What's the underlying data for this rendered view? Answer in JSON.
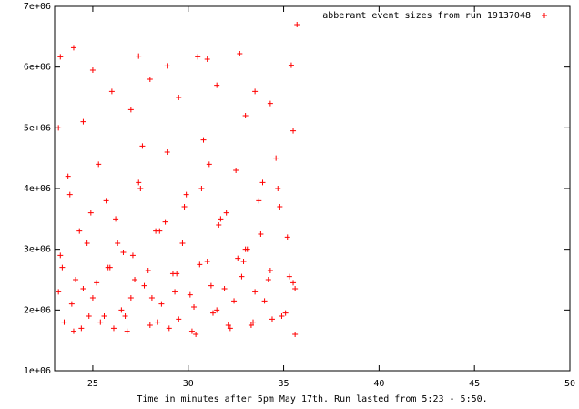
{
  "chart_data": {
    "type": "scatter",
    "xlabel": "Time in minutes after 5pm May 17th.  Run lasted from 5:23 - 5:50.",
    "xlim": [
      23,
      50
    ],
    "xticks": [
      25,
      30,
      35,
      40,
      45,
      50
    ],
    "ylim": [
      1000000,
      7000000
    ],
    "yticks": [
      {
        "value": 1000000,
        "label": "1e+06"
      },
      {
        "value": 2000000,
        "label": "2e+06"
      },
      {
        "value": 3000000,
        "label": "3e+06"
      },
      {
        "value": 4000000,
        "label": "4e+06"
      },
      {
        "value": 5000000,
        "label": "5e+06"
      },
      {
        "value": 6000000,
        "label": "6e+06"
      },
      {
        "value": 7000000,
        "label": "7e+06"
      }
    ],
    "legend_position": "top-right",
    "series": [
      {
        "name": "abberant event sizes from run 19137048",
        "color": "#ff0000",
        "x": [
          23.2,
          23.5,
          23.8,
          24.1,
          24.4,
          24.7,
          25.0,
          25.3,
          25.6,
          25.9,
          26.2,
          26.5,
          26.8,
          27.1,
          27.4,
          27.7,
          28.0,
          28.3,
          28.6,
          28.9,
          29.2,
          29.5,
          29.8,
          30.1,
          30.4,
          30.7,
          31.0,
          31.3,
          31.6,
          31.9,
          32.2,
          32.5,
          32.8,
          33.1,
          33.4,
          33.7,
          34.0,
          34.3,
          34.6,
          34.9,
          35.2,
          35.5,
          23.3,
          23.7,
          24.0,
          24.5,
          24.9,
          25.4,
          25.8,
          26.3,
          26.7,
          27.2,
          27.6,
          28.1,
          28.5,
          29.0,
          29.4,
          29.9,
          30.3,
          30.8,
          31.2,
          31.7,
          32.1,
          32.6,
          33.0,
          33.5,
          33.9,
          34.4,
          34.8,
          35.3,
          35.6,
          23.4,
          23.9,
          24.3,
          24.8,
          25.2,
          25.7,
          26.1,
          26.6,
          27.0,
          27.5,
          27.9,
          28.4,
          28.8,
          29.3,
          29.7,
          30.2,
          30.6,
          31.1,
          31.5,
          32.0,
          32.4,
          32.9,
          33.3,
          33.8,
          34.2,
          34.7,
          35.1,
          35.6,
          23.2,
          24.0,
          23.3,
          25.0,
          27.4,
          28.9,
          30.5,
          31.0,
          32.7,
          34.3,
          35.4,
          35.7,
          26.0,
          28.0,
          29.5,
          31.5,
          33.0,
          24.5,
          27.0,
          33.5,
          35.5
        ],
        "values": [
          2300000,
          1800000,
          3900000,
          2500000,
          1700000,
          3100000,
          2200000,
          4400000,
          1900000,
          2700000,
          3500000,
          2000000,
          1650000,
          2900000,
          4100000,
          2400000,
          1750000,
          3300000,
          2100000,
          4600000,
          2600000,
          1850000,
          3700000,
          2250000,
          1600000,
          4000000,
          2800000,
          1950000,
          3400000,
          2350000,
          1700000,
          4300000,
          2550000,
          3000000,
          1800000,
          3800000,
          2150000,
          2650000,
          4500000,
          1900000,
          3200000,
          2450000,
          2900000,
          4200000,
          1650000,
          2350000,
          3600000,
          1800000,
          2700000,
          3100000,
          1900000,
          2500000,
          4700000,
          2200000,
          3300000,
          1700000,
          2600000,
          3900000,
          2050000,
          4800000,
          2400000,
          3500000,
          1750000,
          2850000,
          3000000,
          2300000,
          4100000,
          1850000,
          3700000,
          2550000,
          1600000,
          2700000,
          2100000,
          3300000,
          1900000,
          2450000,
          3800000,
          1700000,
          2950000,
          2200000,
          4000000,
          2650000,
          1800000,
          3450000,
          2300000,
          3100000,
          1650000,
          2750000,
          4400000,
          2000000,
          3600000,
          2150000,
          2800000,
          1750000,
          3250000,
          2500000,
          4000000,
          1950000,
          2350000,
          5000000,
          6320000,
          6170000,
          5950000,
          6180000,
          6020000,
          6170000,
          6130000,
          6220000,
          5400000,
          6030000,
          6700000,
          5600000,
          5800000,
          5500000,
          5700000,
          5200000,
          5100000,
          5300000,
          5600000,
          4950000
        ]
      }
    ]
  }
}
